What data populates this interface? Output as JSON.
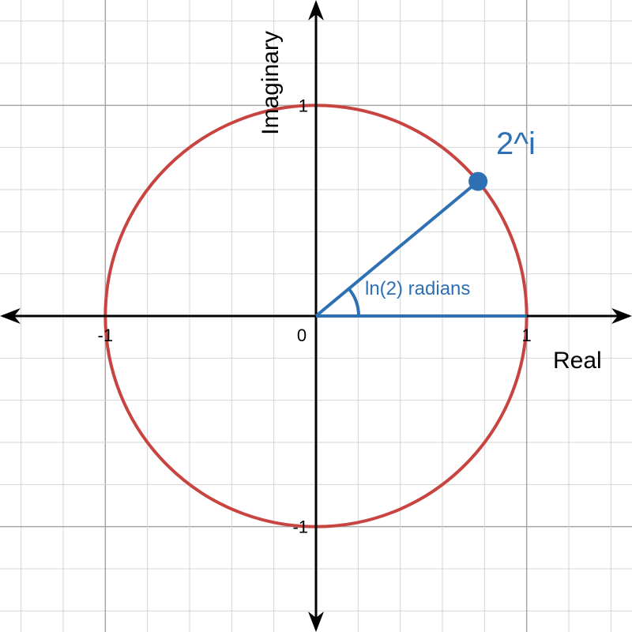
{
  "axes": {
    "x_label": "Real",
    "y_label": "Imaginary",
    "origin_label": "0",
    "x_ticks": [
      {
        "value": -1,
        "label": "-1"
      },
      {
        "value": 1,
        "label": "1"
      }
    ],
    "y_ticks": [
      {
        "value": 1,
        "label": "1"
      },
      {
        "value": -1,
        "label": "-1"
      }
    ],
    "x_range": [
      -1.5,
      1.5
    ],
    "y_range": [
      -1.5,
      1.5
    ],
    "minor_grid_step": 0.2,
    "major_grid_step": 1.0
  },
  "unit_circle": {
    "radius": 1,
    "color": "#c74440"
  },
  "point": {
    "label": "2^i",
    "angle_radians": 0.693147,
    "re": 0.769239,
    "im": 0.638961,
    "color": "#2d70b3"
  },
  "angle": {
    "label": "ln(2) radians",
    "color": "#2d70b3"
  },
  "colors": {
    "grid_minor": "#d6d6d6",
    "grid_major": "#a6a6a6",
    "axis": "#000000"
  }
}
